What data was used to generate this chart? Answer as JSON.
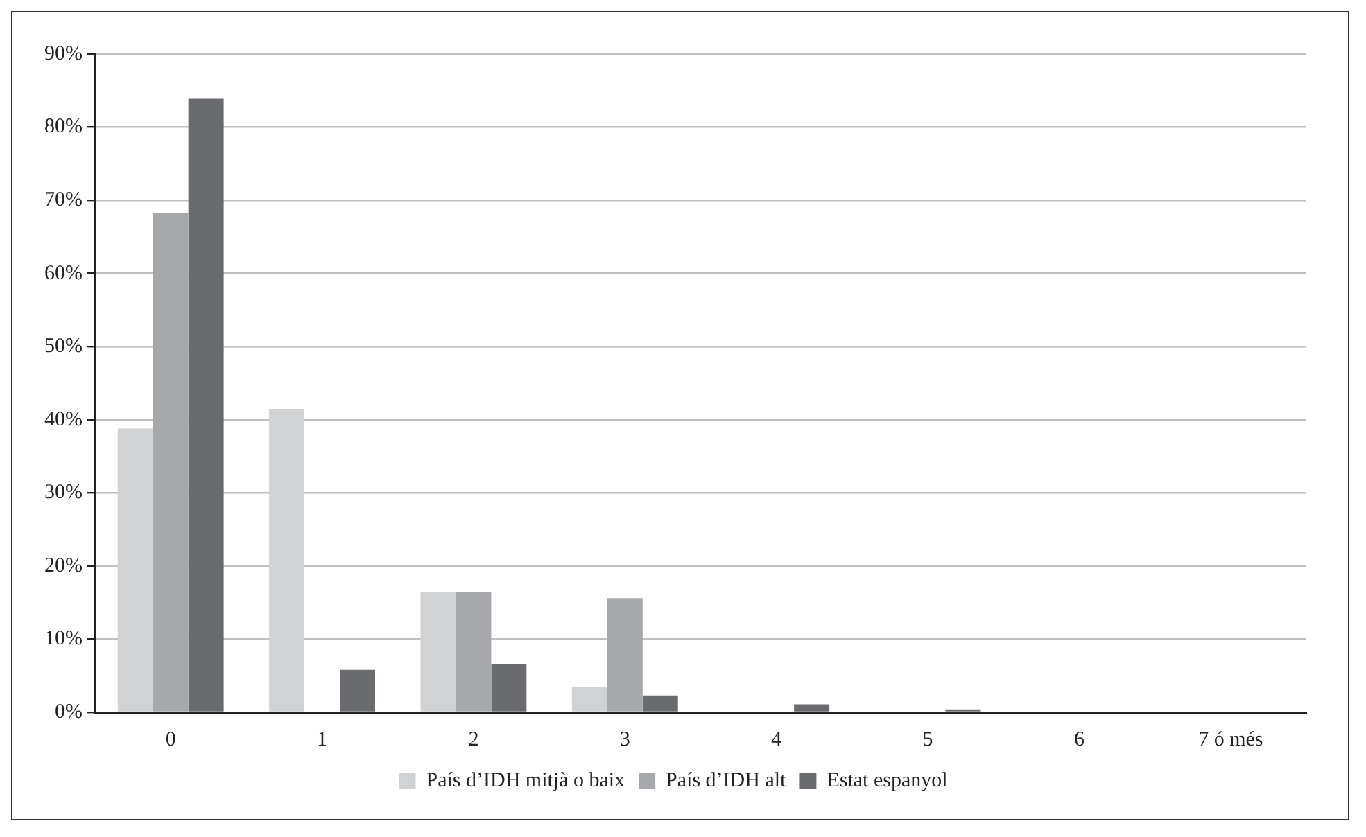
{
  "chart_data": {
    "type": "bar",
    "categories": [
      "0",
      "1",
      "2",
      "3",
      "4",
      "5",
      "6",
      "7 ó més"
    ],
    "series": [
      {
        "name": "País d’IDH mitjà o baix",
        "color": "#d1d2d4",
        "values": [
          38.8,
          41.5,
          16.4,
          3.5,
          0,
          0,
          0,
          0
        ]
      },
      {
        "name": "País d’IDH alt",
        "color": "#a7a8ab",
        "values": [
          68.2,
          0,
          16.4,
          15.6,
          0,
          0,
          0,
          0
        ]
      },
      {
        "name": "Estat espanyol",
        "color": "#6a6b6f",
        "values": [
          83.9,
          5.8,
          6.6,
          2.3,
          1.1,
          0.4,
          0,
          0
        ]
      }
    ],
    "ylim": [
      0,
      90
    ],
    "yticks": [
      {
        "value": 0,
        "label": "0%"
      },
      {
        "value": 10,
        "label": "10%"
      },
      {
        "value": 20,
        "label": "20%"
      },
      {
        "value": 30,
        "label": "30%"
      },
      {
        "value": 40,
        "label": "40%"
      },
      {
        "value": 50,
        "label": "50%"
      },
      {
        "value": 60,
        "label": "60%"
      },
      {
        "value": 70,
        "label": "70%"
      },
      {
        "value": 80,
        "label": "80%"
      },
      {
        "value": 90,
        "label": "90%"
      }
    ],
    "grid": "y",
    "legend": "bottom"
  }
}
